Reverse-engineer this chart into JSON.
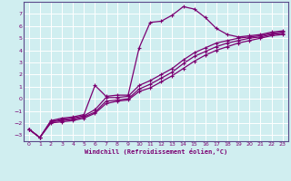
{
  "xlabel": "Windchill (Refroidissement éolien,°C)",
  "bg_color": "#d0eef0",
  "grid_color": "#ffffff",
  "line_color": "#7b0072",
  "axis_color": "#5a4a8a",
  "xlim": [
    -0.5,
    23.5
  ],
  "ylim": [
    -3.5,
    8.0
  ],
  "xticks": [
    0,
    1,
    2,
    3,
    4,
    5,
    6,
    7,
    8,
    9,
    10,
    11,
    12,
    13,
    14,
    15,
    16,
    17,
    18,
    19,
    20,
    21,
    22,
    23
  ],
  "yticks": [
    -3,
    -2,
    -1,
    0,
    1,
    2,
    3,
    4,
    5,
    6,
    7
  ],
  "line1_x": [
    0,
    1,
    2,
    3,
    4,
    5,
    6,
    7,
    8,
    9,
    10,
    11,
    12,
    13,
    14,
    15,
    16,
    17,
    18,
    19,
    20,
    21,
    22,
    23
  ],
  "line1_y": [
    -2.5,
    -3.2,
    -1.8,
    -1.6,
    -1.5,
    -1.3,
    1.1,
    0.2,
    0.3,
    0.3,
    4.2,
    6.3,
    6.4,
    6.9,
    7.6,
    7.4,
    6.7,
    5.8,
    5.3,
    5.1,
    5.2,
    5.3,
    5.5,
    5.6
  ],
  "line2_x": [
    0,
    1,
    2,
    3,
    4,
    5,
    6,
    7,
    8,
    9,
    10,
    11,
    12,
    13,
    14,
    15,
    16,
    17,
    18,
    19,
    20,
    21,
    22,
    23
  ],
  "line2_y": [
    -2.5,
    -3.2,
    -1.9,
    -1.7,
    -1.6,
    -1.4,
    -0.9,
    0.1,
    0.1,
    0.2,
    1.1,
    1.5,
    2.0,
    2.5,
    3.2,
    3.8,
    4.2,
    4.6,
    4.8,
    5.0,
    5.1,
    5.2,
    5.4,
    5.5
  ],
  "line3_x": [
    0,
    1,
    2,
    3,
    4,
    5,
    6,
    7,
    8,
    9,
    10,
    11,
    12,
    13,
    14,
    15,
    16,
    17,
    18,
    19,
    20,
    21,
    22,
    23
  ],
  "line3_y": [
    -2.5,
    -3.2,
    -1.9,
    -1.8,
    -1.7,
    -1.5,
    -1.1,
    -0.2,
    -0.1,
    0.0,
    0.8,
    1.2,
    1.7,
    2.2,
    2.9,
    3.5,
    3.9,
    4.3,
    4.6,
    4.8,
    5.0,
    5.1,
    5.3,
    5.4
  ],
  "line4_x": [
    0,
    1,
    2,
    3,
    4,
    5,
    6,
    7,
    8,
    9,
    10,
    11,
    12,
    13,
    14,
    15,
    16,
    17,
    18,
    19,
    20,
    21,
    22,
    23
  ],
  "line4_y": [
    -2.5,
    -3.2,
    -2.0,
    -1.9,
    -1.8,
    -1.6,
    -1.2,
    -0.4,
    -0.2,
    -0.1,
    0.6,
    0.9,
    1.4,
    1.9,
    2.5,
    3.1,
    3.6,
    4.0,
    4.3,
    4.6,
    4.8,
    5.0,
    5.2,
    5.3
  ]
}
